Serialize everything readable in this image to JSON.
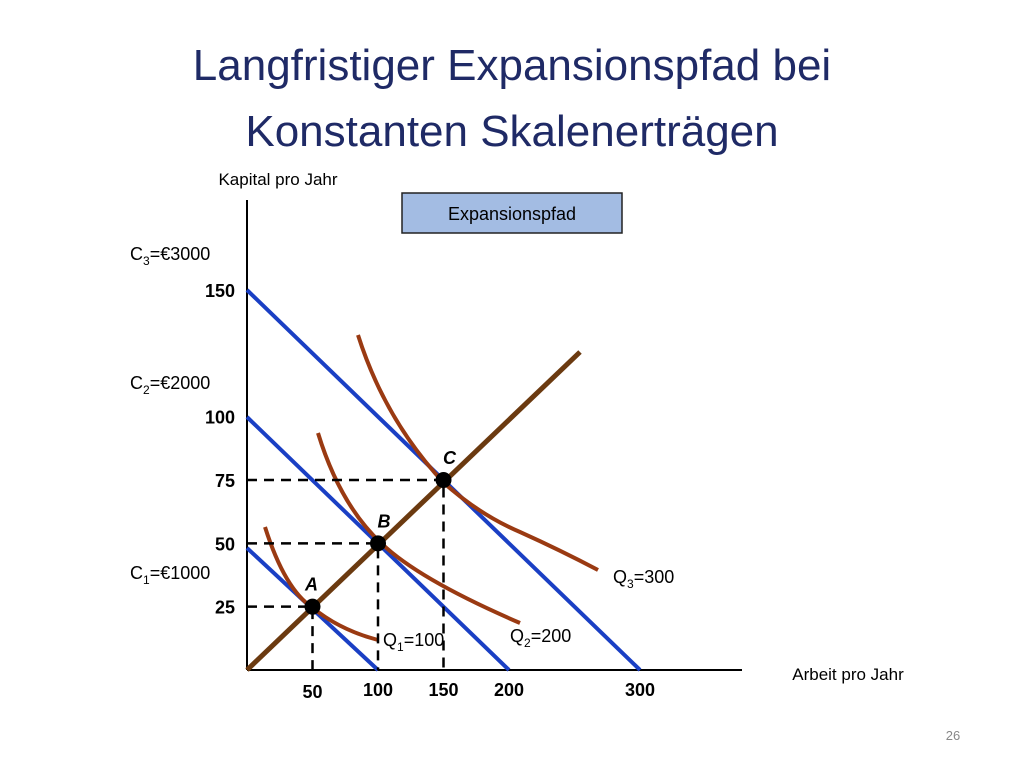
{
  "title": [
    "Langfristiger Expansionspfad bei",
    "Konstanten Skalenerträgen"
  ],
  "y_axis_label": "Kapital pro Jahr",
  "x_axis_label": "Arbeit pro Jahr",
  "path_label": "Expansionspfad",
  "xticks": [
    50,
    100,
    150,
    200,
    300
  ],
  "yticks": [
    25,
    50,
    75,
    100,
    150
  ],
  "points": [
    "A",
    "B",
    "C"
  ],
  "isocosts": [
    {
      "base": "C",
      "sub": "1",
      "rest": "=€1000"
    },
    {
      "base": "C",
      "sub": "2",
      "rest": "=€2000"
    },
    {
      "base": "C",
      "sub": "3",
      "rest": "=€3000"
    }
  ],
  "isoquants": [
    {
      "base": "Q",
      "sub": "1",
      "rest": "=100"
    },
    {
      "base": "Q",
      "sub": "2",
      "rest": "=200"
    },
    {
      "base": "Q",
      "sub": "3",
      "rest": "=300"
    }
  ],
  "page_number": "26"
}
